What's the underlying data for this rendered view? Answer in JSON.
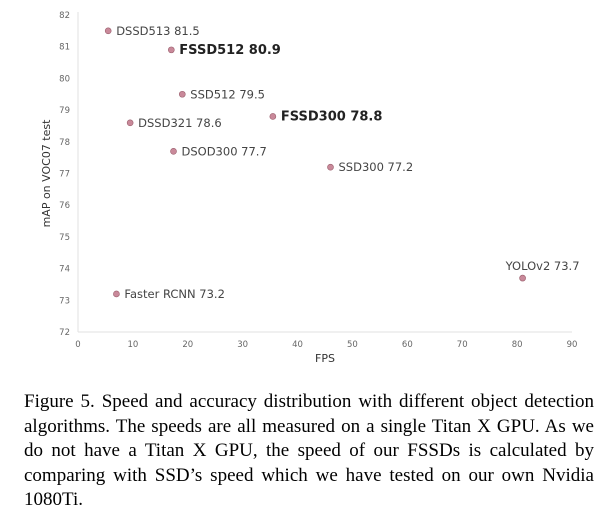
{
  "chart_data": {
    "type": "scatter",
    "xlabel": "FPS",
    "ylabel": "mAP on VOC07 test",
    "xlim": [
      0,
      90
    ],
    "ylim": [
      72,
      82
    ],
    "xticks": [
      0,
      10,
      20,
      30,
      40,
      50,
      60,
      70,
      80,
      90
    ],
    "yticks": [
      72,
      73,
      74,
      75,
      76,
      77,
      78,
      79,
      80,
      81,
      82
    ],
    "grid": false,
    "marker_color": "#c9899a",
    "points": [
      {
        "label": "DSSD513 81.5",
        "x": 5.5,
        "y": 81.5,
        "bold": false
      },
      {
        "label": "FSSD512 80.9",
        "x": 17,
        "y": 80.9,
        "bold": true
      },
      {
        "label": "SSD512 79.5",
        "x": 19,
        "y": 79.5,
        "bold": false
      },
      {
        "label": "FSSD300 78.8",
        "x": 35.5,
        "y": 78.8,
        "bold": true
      },
      {
        "label": "DSSD321 78.6",
        "x": 9.5,
        "y": 78.6,
        "bold": false
      },
      {
        "label": "DSOD300 77.7",
        "x": 17.4,
        "y": 77.7,
        "bold": false
      },
      {
        "label": "SSD300 77.2",
        "x": 46,
        "y": 77.2,
        "bold": false
      },
      {
        "label": "YOLOv2 73.7",
        "x": 81,
        "y": 73.7,
        "bold": false
      },
      {
        "label": "Faster RCNN 73.2",
        "x": 7,
        "y": 73.2,
        "bold": false
      }
    ]
  },
  "caption": "Figure 5. Speed and accuracy distribution with different object detection algorithms. The speeds are all measured on a single Titan X GPU. As we do not have a Titan X GPU, the speed of our FSSDs is calculated by comparing with SSD’s speed which we have tested on our own Nvidia 1080Ti."
}
